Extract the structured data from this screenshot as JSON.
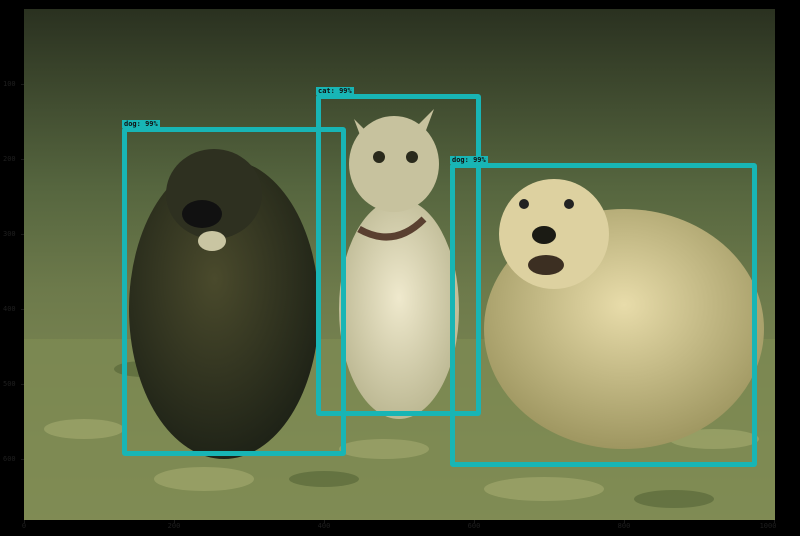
{
  "image": {
    "description_free": true,
    "tint": "#2d3420"
  },
  "axes": {
    "x_ticks": [
      "0",
      "200",
      "400",
      "600",
      "800",
      "1000"
    ],
    "y_ticks": [
      "100",
      "200",
      "300",
      "400",
      "500",
      "600"
    ]
  },
  "detections": [
    {
      "label": "dog:",
      "score": "99%"
    },
    {
      "label": "cat:",
      "score": "99%"
    },
    {
      "label": "dog:",
      "score": "99%"
    }
  ],
  "colors": {
    "box": "#18b5b5",
    "background": "#000000"
  }
}
